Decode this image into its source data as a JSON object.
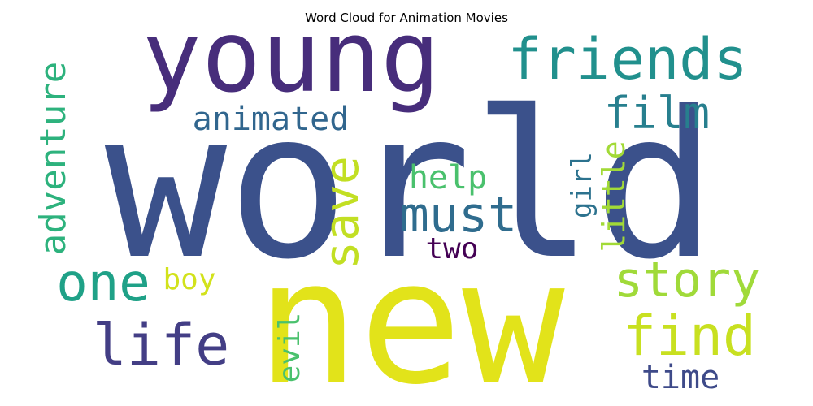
{
  "chart_data": {
    "type": "wordcloud",
    "title": "Word Cloud for Animation Movies",
    "words": [
      {
        "text": "world",
        "rank": 1,
        "color": "#3b518b",
        "orientation": "horizontal"
      },
      {
        "text": "new",
        "rank": 2,
        "color": "#e2e31a",
        "orientation": "horizontal"
      },
      {
        "text": "young",
        "rank": 3,
        "color": "#472d7b",
        "orientation": "horizontal"
      },
      {
        "text": "friends",
        "rank": 4,
        "color": "#21908d",
        "orientation": "horizontal"
      },
      {
        "text": "find",
        "rank": 5,
        "color": "#c8e020",
        "orientation": "horizontal"
      },
      {
        "text": "life",
        "rank": 6,
        "color": "#433e85",
        "orientation": "horizontal"
      },
      {
        "text": "story",
        "rank": 7,
        "color": "#a0da39",
        "orientation": "horizontal"
      },
      {
        "text": "one",
        "rank": 8,
        "color": "#1fa187",
        "orientation": "horizontal"
      },
      {
        "text": "must",
        "rank": 9,
        "color": "#2f6c8e",
        "orientation": "horizontal"
      },
      {
        "text": "film",
        "rank": 10,
        "color": "#277f8e",
        "orientation": "horizontal"
      },
      {
        "text": "save",
        "rank": 11,
        "color": "#c2df23",
        "orientation": "vertical"
      },
      {
        "text": "adventure",
        "rank": 12,
        "color": "#2db27d",
        "orientation": "vertical"
      },
      {
        "text": "animated",
        "rank": 13,
        "color": "#31668e",
        "orientation": "horizontal"
      },
      {
        "text": "evil",
        "rank": 14,
        "color": "#4ac16d",
        "orientation": "vertical"
      },
      {
        "text": "time",
        "rank": 15,
        "color": "#3e4a89",
        "orientation": "horizontal"
      },
      {
        "text": "help",
        "rank": 16,
        "color": "#4ac16d",
        "orientation": "horizontal"
      },
      {
        "text": "little",
        "rank": 17,
        "color": "#a2da37",
        "orientation": "vertical"
      },
      {
        "text": "two",
        "rank": 18,
        "color": "#440154",
        "orientation": "horizontal"
      },
      {
        "text": "boy",
        "rank": 19,
        "color": "#d2e21b",
        "orientation": "horizontal"
      },
      {
        "text": "girl",
        "rank": 20,
        "color": "#2c728e",
        "orientation": "vertical"
      }
    ]
  }
}
